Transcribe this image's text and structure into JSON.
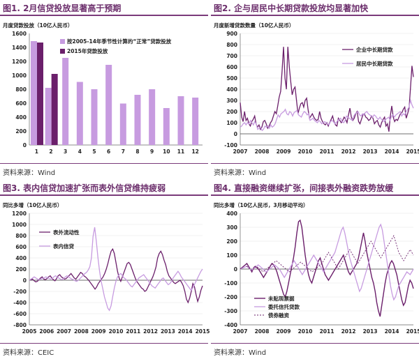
{
  "colors": {
    "dark": "#6b1f6b",
    "light": "#c79be0",
    "accent": "#7a3a7a"
  },
  "panels": [
    {
      "title": "图1. 2月信贷投放显著高于预期",
      "subtitle": "月度贷款投放（10亿人民币）",
      "source": "资料来源：Wind"
    },
    {
      "title": "图2. 企与居民中长期贷款投放均显著加快",
      "subtitle": "月度新增贷款数量（10亿人民币）",
      "source": "资料来源：Wind"
    },
    {
      "title": "图3. 表内信贷加速扩张而表外信贷维持疲弱",
      "subtitle": "同比多增（10亿人民币）",
      "source": "资料来源：CEIC"
    },
    {
      "title": "图4. 直接融资继续扩张，间接表外融资跌势放缓",
      "subtitle": "同比多增（10亿人民币，3月移动平均）",
      "source": "资料来源：Wind"
    }
  ],
  "chart_data": [
    {
      "type": "bar",
      "categories": [
        "1",
        "2",
        "3",
        "4",
        "5",
        "6",
        "7",
        "8",
        "9",
        "10",
        "11",
        "12"
      ],
      "ylim": [
        0,
        1600
      ],
      "yticks": [
        0,
        200,
        400,
        600,
        800,
        1000,
        1200,
        1400,
        1600
      ],
      "series": [
        {
          "name": "按2005-14年季节性计算的“正常”贷款投放",
          "values": [
            1490,
            820,
            1250,
            905,
            800,
            1150,
            595,
            720,
            800,
            530,
            700,
            680
          ]
        },
        {
          "name": "2015年贷款投放",
          "values": [
            1470,
            1020,
            null,
            null,
            null,
            null,
            null,
            null,
            null,
            null,
            null,
            null
          ]
        }
      ]
    },
    {
      "type": "line",
      "x_ticks": [
        "2007",
        "2008",
        "2009",
        "2010",
        "2011",
        "2012",
        "2013",
        "2014",
        "2015"
      ],
      "ylim": [
        -100,
        900
      ],
      "yticks": [
        -100,
        0,
        100,
        200,
        300,
        400,
        500,
        600,
        700,
        800,
        900
      ],
      "series": [
        {
          "name": "企业中长期贷款",
          "values": [
            280,
            150,
            110,
            200,
            120,
            140,
            90,
            70,
            110,
            130,
            160,
            90,
            60,
            80,
            40,
            60,
            110,
            120,
            90,
            50,
            70,
            100,
            120,
            160,
            200,
            180,
            250,
            330,
            380,
            560,
            780,
            500,
            400,
            780,
            600,
            470,
            350,
            400,
            420,
            300,
            180,
            230,
            270,
            280,
            240,
            300,
            320,
            220,
            140,
            160,
            180,
            150,
            130,
            120,
            130,
            200,
            140,
            110,
            90,
            80,
            100,
            70,
            100,
            130,
            160,
            110,
            80,
            70,
            140,
            120,
            100,
            120,
            150,
            130,
            100,
            170,
            230,
            150,
            120,
            140,
            180,
            200,
            110,
            90,
            130,
            170,
            180,
            150,
            140,
            120,
            130,
            160,
            140,
            90,
            110,
            120,
            80,
            60,
            100,
            130,
            150,
            70,
            90,
            20,
            160,
            250,
            150,
            110,
            130,
            120,
            150,
            180,
            190,
            220,
            240,
            140,
            180,
            230,
            420,
            610,
            510
          ]
        },
        {
          "name": "居民中长期贷款",
          "values": [
            60,
            70,
            90,
            100,
            80,
            100,
            90,
            120,
            100,
            80,
            110,
            90,
            40,
            50,
            60,
            30,
            40,
            70,
            60,
            70,
            50,
            80,
            60,
            70,
            90,
            130,
            170,
            150,
            180,
            190,
            200,
            220,
            180,
            170,
            200,
            190,
            160,
            190,
            200,
            210,
            170,
            160,
            150,
            180,
            200,
            190,
            170,
            180,
            120,
            130,
            140,
            120,
            110,
            100,
            120,
            110,
            90,
            100,
            110,
            100,
            90,
            80,
            110,
            120,
            110,
            90,
            100,
            120,
            130,
            140,
            110,
            100,
            120,
            160,
            150,
            140,
            130,
            120,
            160,
            180,
            190,
            200,
            170,
            160,
            180,
            170,
            190,
            200,
            180,
            170,
            160,
            150,
            170,
            160,
            140,
            130,
            150,
            130,
            120,
            110,
            130,
            140,
            150,
            120,
            160,
            170,
            150,
            170,
            180,
            190,
            200,
            160,
            180,
            170,
            200,
            220,
            240,
            300,
            260,
            230
          ]
        }
      ]
    },
    {
      "type": "line",
      "x_ticks": [
        "2005",
        "2006",
        "2007",
        "2008",
        "2009",
        "2010",
        "2011",
        "2012",
        "2013",
        "2014",
        "2015"
      ],
      "ylim": [
        -800,
        1200
      ],
      "yticks": [
        -800,
        -600,
        -400,
        -200,
        0,
        200,
        400,
        600,
        800,
        1000,
        1200
      ],
      "series": [
        {
          "name": "表外流动性",
          "values": [
            0,
            10,
            20,
            -10,
            -30,
            -20,
            10,
            40,
            60,
            20,
            10,
            30,
            60,
            80,
            40,
            10,
            -10,
            30,
            80,
            100,
            60,
            40,
            20,
            30,
            60,
            90,
            120,
            80,
            40,
            20,
            60,
            100,
            140,
            120,
            80,
            60,
            30,
            0,
            -40,
            -80,
            -120,
            -160,
            -120,
            -60,
            -20,
            20,
            60,
            120,
            200,
            300,
            420,
            520,
            560,
            480,
            320,
            160,
            40,
            -20,
            60,
            140,
            220,
            300,
            320,
            280,
            200,
            120,
            40,
            -20,
            -60,
            -100,
            -140,
            -160,
            -200,
            -180,
            -120,
            -60,
            0,
            60,
            140,
            240,
            400,
            480,
            520,
            460,
            360,
            280,
            160,
            80,
            40,
            0,
            -40,
            -60,
            -40,
            -20,
            0,
            -40,
            -100,
            -200,
            -340,
            -400,
            -320,
            -200,
            -60,
            -120,
            -260,
            -380,
            -300,
            -180,
            -100
          ]
        },
        {
          "name": "表内信贷",
          "values": [
            0,
            20,
            40,
            60,
            40,
            20,
            10,
            20,
            30,
            40,
            60,
            50,
            30,
            20,
            30,
            60,
            80,
            60,
            40,
            20,
            10,
            30,
            60,
            80,
            60,
            40,
            20,
            10,
            -10,
            -20,
            0,
            30,
            60,
            90,
            120,
            140,
            180,
            240,
            400,
            780,
            950,
            700,
            400,
            160,
            -20,
            -160,
            -300,
            -400,
            -500,
            -540,
            -460,
            -300,
            -140,
            -20,
            60,
            100,
            120,
            80,
            40,
            20,
            -20,
            -60,
            -100,
            -120,
            -80,
            -40,
            0,
            40,
            60,
            80,
            100,
            60,
            20,
            -20,
            -60,
            -100,
            -120,
            -140,
            -100,
            -60,
            -20,
            20,
            40,
            0,
            -40,
            -80,
            -60,
            -20,
            40,
            80,
            120,
            160,
            120,
            60,
            20,
            -20,
            -60,
            -100,
            -140,
            -180,
            -140,
            -80,
            -20,
            40,
            100,
            160,
            200
          ]
        }
      ]
    },
    {
      "type": "line",
      "x_ticks": [
        "2007",
        "2008",
        "2009",
        "2010",
        "2011",
        "2012",
        "2013",
        "2014",
        "2015"
      ],
      "ylim": [
        -400,
        400
      ],
      "yticks": [
        -400,
        -300,
        -200,
        -100,
        0,
        100,
        200,
        300,
        400
      ],
      "series": [
        {
          "name": "未贴现票据",
          "values": [
            0,
            10,
            20,
            30,
            40,
            20,
            0,
            -20,
            10,
            20,
            10,
            0,
            -20,
            -40,
            -60,
            -40,
            -20,
            0,
            20,
            40,
            30,
            10,
            -20,
            -60,
            -100,
            -140,
            -180,
            -200,
            -160,
            -100,
            -40,
            20,
            80,
            160,
            260,
            340,
            350,
            300,
            200,
            100,
            20,
            -40,
            -80,
            -100,
            -60,
            -20,
            20,
            60,
            80,
            40,
            0,
            -40,
            -60,
            -80,
            -60,
            -40,
            -20,
            0,
            20,
            40,
            60,
            80,
            100,
            60,
            20,
            -20,
            -40,
            -20,
            0,
            20,
            40,
            80,
            140,
            200,
            260,
            200,
            120,
            60,
            0,
            -60,
            -100,
            -160,
            -240,
            -300,
            -340,
            -260,
            -180,
            -100,
            -40,
            0,
            40,
            60,
            40,
            0,
            -40,
            -100,
            -160,
            -220,
            -260,
            -240,
            -180,
            -120,
            -80,
            -100,
            -140
          ]
        },
        {
          "name": "委托信托贷款",
          "values": [
            0,
            5,
            10,
            15,
            20,
            10,
            0,
            -10,
            5,
            10,
            20,
            30,
            20,
            10,
            0,
            -10,
            -20,
            -10,
            0,
            10,
            20,
            30,
            20,
            10,
            0,
            -20,
            -40,
            -60,
            -40,
            -20,
            0,
            20,
            40,
            60,
            40,
            20,
            0,
            -20,
            -40,
            -20,
            0,
            20,
            40,
            60,
            80,
            100,
            80,
            60,
            40,
            20,
            0,
            -20,
            0,
            20,
            40,
            60,
            80,
            100,
            120,
            160,
            200,
            240,
            280,
            300,
            260,
            200,
            140,
            80,
            40,
            0,
            -40,
            -80,
            -120,
            -160,
            -140,
            -100,
            -60,
            -20,
            20,
            60,
            100,
            140,
            180,
            220,
            260,
            300,
            320,
            280,
            200,
            120,
            40,
            -40,
            -120,
            -180,
            -220,
            -200,
            -160,
            -120,
            -100,
            -80,
            -60,
            -40,
            -20,
            -30,
            -40,
            -20,
            0
          ]
        },
        {
          "name": "债券融资",
          "values": [
            0,
            10,
            20,
            30,
            20,
            10,
            0,
            -10,
            0,
            10,
            20,
            10,
            0,
            -10,
            -20,
            -10,
            0,
            10,
            20,
            30,
            40,
            50,
            60,
            50,
            40,
            30,
            20,
            10,
            0,
            -10,
            -20,
            -10,
            0,
            10,
            20,
            30,
            40,
            50,
            40,
            30,
            20,
            10,
            0,
            -10,
            -20,
            -10,
            0,
            10,
            20,
            30,
            40,
            60,
            80,
            100,
            120,
            100,
            80,
            60,
            40,
            20,
            0,
            20,
            40,
            60,
            80,
            100,
            120,
            140,
            120,
            100,
            80,
            60,
            40,
            60,
            80,
            100,
            120,
            140,
            160,
            180,
            200,
            180,
            160,
            140,
            120,
            100,
            80,
            100,
            120,
            140,
            160,
            180,
            200,
            220,
            240,
            200,
            160,
            120,
            100,
            80,
            60,
            80,
            100,
            120,
            140,
            120,
            100
          ]
        }
      ]
    }
  ]
}
